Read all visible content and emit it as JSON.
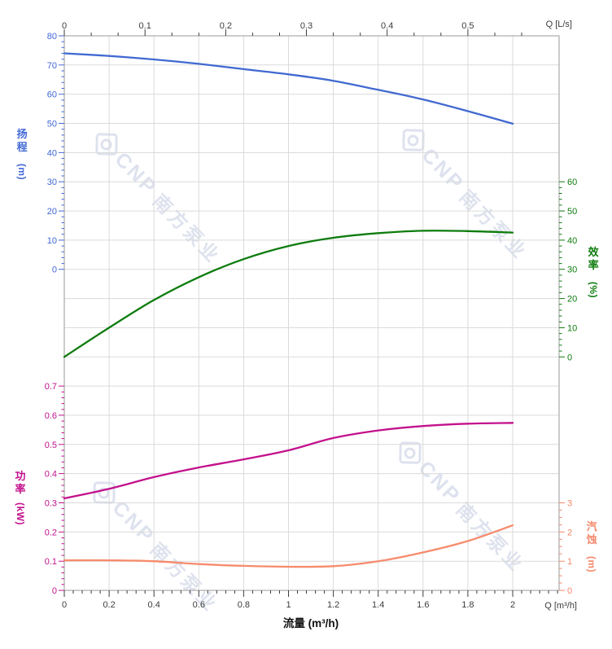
{
  "watermark": {
    "brand": "CNP",
    "company": "南方泵业"
  },
  "chart_data": {
    "type": "line",
    "x_label": "流量 (m³/h)",
    "x_m3h": [
      0,
      0.2,
      0.4,
      0.6,
      0.8,
      1.0,
      1.2,
      1.4,
      1.6,
      1.8,
      2.0
    ],
    "series": [
      {
        "name": "head",
        "axis": "head",
        "color": "#4169d1",
        "values": [
          74.0,
          73.1,
          71.9,
          70.4,
          68.6,
          66.8,
          64.6,
          61.5,
          58.2,
          54.2,
          49.9
        ]
      },
      {
        "name": "efficiency",
        "axis": "eff",
        "color": "#0e7c0e",
        "values": [
          0,
          10.0,
          19.5,
          27.3,
          33.5,
          38.0,
          40.8,
          42.4,
          43.2,
          43.1,
          42.6
        ]
      },
      {
        "name": "power",
        "axis": "power",
        "color": "#c3118c",
        "values": [
          0.315,
          0.348,
          0.388,
          0.421,
          0.449,
          0.48,
          0.522,
          0.548,
          0.563,
          0.571,
          0.574
        ]
      },
      {
        "name": "npsh",
        "axis": "npsh",
        "color": "#f68b6c",
        "values": [
          1.03,
          1.03,
          1.0,
          0.9,
          0.84,
          0.81,
          0.83,
          1.0,
          1.3,
          1.69,
          2.23
        ]
      }
    ],
    "axes": {
      "x_top": {
        "unit_label": "Q [L/s]",
        "tick_values": [
          0,
          0.1,
          0.2,
          0.3,
          0.4,
          0.5
        ],
        "tick_labels": [
          "0",
          "0.1",
          "0.2",
          "0.3",
          "0.4",
          "0.5"
        ],
        "color": "#3c3c3c"
      },
      "x_bottom": {
        "unit_label": "Q [m³/h]",
        "tick_values": [
          0,
          0.2,
          0.4,
          0.6,
          0.8,
          1,
          1.2,
          1.4,
          1.6,
          1.8,
          2
        ],
        "tick_labels": [
          "0",
          "0.2",
          "0.4",
          "0.6",
          "0.8",
          "1",
          "1.2",
          "1.4",
          "1.6",
          "1.8",
          "2"
        ],
        "color": "#3c3c3c"
      },
      "head": {
        "title": "扬程",
        "unit": "(m)",
        "range": [
          0,
          80
        ],
        "tick_values": [
          0,
          10,
          20,
          30,
          40,
          50,
          60,
          70,
          80
        ],
        "tick_labels": [
          "0",
          "10",
          "20",
          "30",
          "40",
          "50",
          "60",
          "70",
          "80"
        ],
        "minor_step": 2,
        "color": "#4168d6"
      },
      "eff": {
        "title": "效率",
        "unit": "(%)",
        "range": [
          0,
          60
        ],
        "tick_values": [
          0,
          10,
          20,
          30,
          40,
          50,
          60
        ],
        "tick_labels": [
          "0",
          "10",
          "20",
          "30",
          "40",
          "50",
          "60"
        ],
        "minor_step": 2,
        "color": "#0e7c0e"
      },
      "power": {
        "title": "功率",
        "unit": "(kW)",
        "range": [
          0,
          0.7
        ],
        "tick_values": [
          0,
          0.1,
          0.2,
          0.3,
          0.4,
          0.5,
          0.6,
          0.7
        ],
        "tick_labels": [
          "0",
          "0.1",
          "0.2",
          "0.3",
          "0.4",
          "0.5",
          "0.6",
          "0.7"
        ],
        "minor_step": 0.02,
        "color": "#c3118c"
      },
      "npsh": {
        "title": "汽蚀",
        "unit": "(m)",
        "range": [
          0,
          3
        ],
        "tick_values": [
          0,
          1,
          2,
          3
        ],
        "tick_labels": [
          "0",
          "1",
          "2",
          "3"
        ],
        "minor_step": 0.25,
        "color": "#f4876a"
      }
    }
  }
}
